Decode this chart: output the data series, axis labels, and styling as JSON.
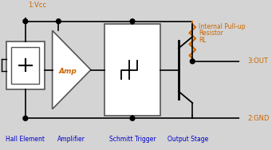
{
  "bg_color": "#d4d4d4",
  "wire_color": "#000000",
  "block_fill": "#ffffff",
  "block_edge": "#555555",
  "amp_text_color": "#cc6600",
  "label_color": "#0000cc",
  "pin_label_color": "#cc6600",
  "resistor_color": "#cc6600",
  "labels": {
    "vcc": "1:Vcc",
    "out": "3:OUT",
    "gnd": "2:GND",
    "hall": "Hall Element",
    "amp": "Amplifier",
    "schmitt": "Schmitt Trigger",
    "output_stage": "Output Stage"
  },
  "pullup_line1": "Internal Pull-up",
  "pullup_line2": "Resistor",
  "pullup_line3": "RL"
}
